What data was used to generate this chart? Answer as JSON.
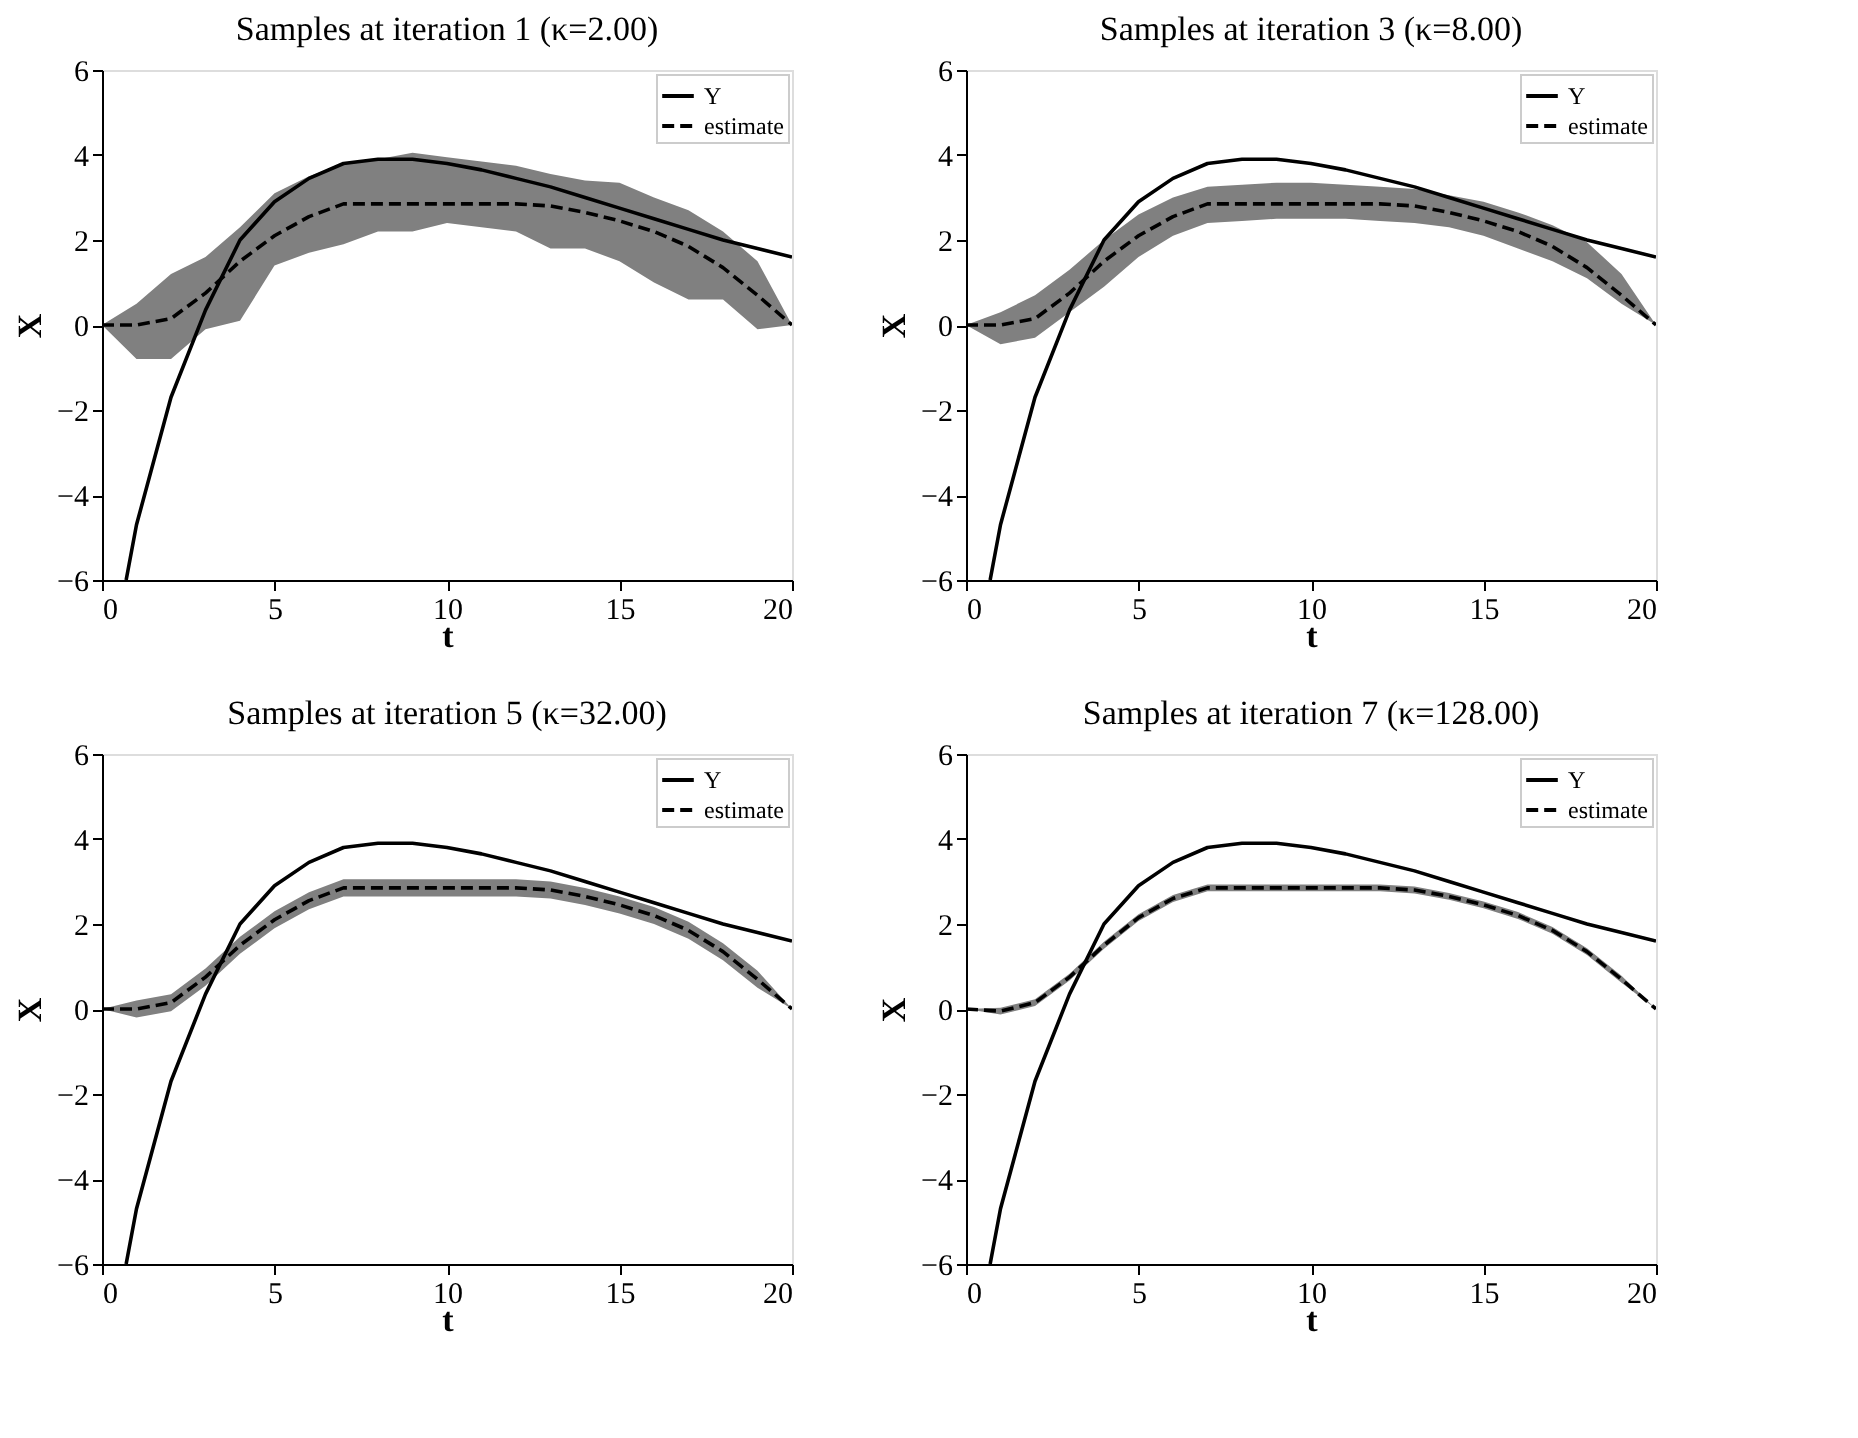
{
  "chart_data": [
    {
      "type": "line",
      "title": "Samples at iteration 1 (κ=2.00)",
      "xlabel": "t",
      "ylabel": "X",
      "xlim": [
        0,
        20
      ],
      "ylim": [
        -6,
        6
      ],
      "xticks": [
        0,
        5,
        10,
        15,
        20
      ],
      "yticks": [
        -6,
        -4,
        -2,
        0,
        2,
        4,
        6
      ],
      "grid": false,
      "legend": "top right",
      "series": [
        {
          "name": "Y",
          "color": "#000000",
          "line_style": "solid",
          "x": [
            0.7,
            1,
            2,
            3,
            4,
            5,
            6,
            7,
            8,
            9,
            10,
            11,
            12,
            13,
            14,
            15,
            16,
            17,
            18,
            19,
            20
          ],
          "values": [
            -6,
            -4.7,
            -1.7,
            0.35,
            2.0,
            2.9,
            3.45,
            3.8,
            3.9,
            3.9,
            3.8,
            3.65,
            3.45,
            3.25,
            3.0,
            2.75,
            2.5,
            2.25,
            2.0,
            1.8,
            1.6
          ]
        },
        {
          "name": "estimate",
          "color": "#000000",
          "line_style": "dashed",
          "x": [
            0,
            1,
            2,
            3,
            4,
            5,
            6,
            7,
            8,
            9,
            10,
            11,
            12,
            13,
            14,
            15,
            16,
            17,
            18,
            19,
            20
          ],
          "values": [
            0,
            0,
            0.15,
            0.75,
            1.5,
            2.1,
            2.55,
            2.85,
            2.85,
            2.85,
            2.85,
            2.85,
            2.85,
            2.8,
            2.65,
            2.45,
            2.2,
            1.85,
            1.35,
            0.7,
            0
          ],
          "lower": [
            0,
            -0.8,
            -0.8,
            -0.1,
            0.1,
            1.4,
            1.7,
            1.9,
            2.2,
            2.2,
            2.4,
            2.3,
            2.2,
            1.8,
            1.8,
            1.5,
            1.0,
            0.6,
            0.6,
            -0.1,
            0
          ],
          "upper": [
            0,
            0.5,
            1.2,
            1.6,
            2.3,
            3.1,
            3.5,
            3.8,
            3.9,
            4.05,
            3.95,
            3.85,
            3.75,
            3.55,
            3.4,
            3.35,
            3.0,
            2.7,
            2.2,
            1.5,
            0
          ]
        }
      ]
    },
    {
      "type": "line",
      "title": "Samples at iteration 3 (κ=8.00)",
      "xlabel": "t",
      "ylabel": "X",
      "xlim": [
        0,
        20
      ],
      "ylim": [
        -6,
        6
      ],
      "xticks": [
        0,
        5,
        10,
        15,
        20
      ],
      "yticks": [
        -6,
        -4,
        -2,
        0,
        2,
        4,
        6
      ],
      "grid": false,
      "legend": "top right",
      "series": [
        {
          "name": "Y",
          "color": "#000000",
          "line_style": "solid",
          "x": [
            0.7,
            1,
            2,
            3,
            4,
            5,
            6,
            7,
            8,
            9,
            10,
            11,
            12,
            13,
            14,
            15,
            16,
            17,
            18,
            19,
            20
          ],
          "values": [
            -6,
            -4.7,
            -1.7,
            0.35,
            2.0,
            2.9,
            3.45,
            3.8,
            3.9,
            3.9,
            3.8,
            3.65,
            3.45,
            3.25,
            3.0,
            2.75,
            2.5,
            2.25,
            2.0,
            1.8,
            1.6
          ]
        },
        {
          "name": "estimate",
          "color": "#000000",
          "line_style": "dashed",
          "x": [
            0,
            1,
            2,
            3,
            4,
            5,
            6,
            7,
            8,
            9,
            10,
            11,
            12,
            13,
            14,
            15,
            16,
            17,
            18,
            19,
            20
          ],
          "values": [
            0,
            0,
            0.15,
            0.75,
            1.5,
            2.1,
            2.55,
            2.85,
            2.85,
            2.85,
            2.85,
            2.85,
            2.85,
            2.8,
            2.65,
            2.45,
            2.2,
            1.85,
            1.35,
            0.7,
            0
          ],
          "lower": [
            0,
            -0.45,
            -0.3,
            0.3,
            0.9,
            1.6,
            2.1,
            2.4,
            2.45,
            2.5,
            2.5,
            2.5,
            2.45,
            2.4,
            2.3,
            2.1,
            1.8,
            1.5,
            1.1,
            0.5,
            0
          ],
          "upper": [
            0,
            0.3,
            0.7,
            1.3,
            2.0,
            2.6,
            3.0,
            3.25,
            3.3,
            3.35,
            3.35,
            3.3,
            3.25,
            3.2,
            3.05,
            2.9,
            2.65,
            2.35,
            1.95,
            1.2,
            0
          ]
        }
      ]
    },
    {
      "type": "line",
      "title": "Samples at iteration 5 (κ=32.00)",
      "xlabel": "t",
      "ylabel": "X",
      "xlim": [
        0,
        20
      ],
      "ylim": [
        -6,
        6
      ],
      "xticks": [
        0,
        5,
        10,
        15,
        20
      ],
      "yticks": [
        -6,
        -4,
        -2,
        0,
        2,
        4,
        6
      ],
      "grid": false,
      "legend": "top right",
      "series": [
        {
          "name": "Y",
          "color": "#000000",
          "line_style": "solid",
          "x": [
            0.7,
            1,
            2,
            3,
            4,
            5,
            6,
            7,
            8,
            9,
            10,
            11,
            12,
            13,
            14,
            15,
            16,
            17,
            18,
            19,
            20
          ],
          "values": [
            -6,
            -4.7,
            -1.7,
            0.35,
            2.0,
            2.9,
            3.45,
            3.8,
            3.9,
            3.9,
            3.8,
            3.65,
            3.45,
            3.25,
            3.0,
            2.75,
            2.5,
            2.25,
            2.0,
            1.8,
            1.6
          ]
        },
        {
          "name": "estimate",
          "color": "#000000",
          "line_style": "dashed",
          "x": [
            0,
            1,
            2,
            3,
            4,
            5,
            6,
            7,
            8,
            9,
            10,
            11,
            12,
            13,
            14,
            15,
            16,
            17,
            18,
            19,
            20
          ],
          "values": [
            0,
            0,
            0.15,
            0.75,
            1.5,
            2.1,
            2.55,
            2.85,
            2.85,
            2.85,
            2.85,
            2.85,
            2.85,
            2.8,
            2.65,
            2.45,
            2.2,
            1.85,
            1.35,
            0.7,
            0
          ],
          "lower": [
            0,
            -0.2,
            -0.05,
            0.55,
            1.3,
            1.9,
            2.35,
            2.65,
            2.65,
            2.65,
            2.65,
            2.65,
            2.65,
            2.6,
            2.45,
            2.25,
            2.0,
            1.65,
            1.15,
            0.5,
            0
          ],
          "upper": [
            0,
            0.2,
            0.35,
            0.95,
            1.7,
            2.3,
            2.75,
            3.05,
            3.05,
            3.05,
            3.05,
            3.05,
            3.05,
            3.0,
            2.85,
            2.65,
            2.4,
            2.05,
            1.55,
            0.9,
            0
          ]
        }
      ]
    },
    {
      "type": "line",
      "title": "Samples at iteration 7 (κ=128.00)",
      "xlabel": "t",
      "ylabel": "X",
      "xlim": [
        0,
        20
      ],
      "ylim": [
        -6,
        6
      ],
      "xticks": [
        0,
        5,
        10,
        15,
        20
      ],
      "yticks": [
        -6,
        -4,
        -2,
        0,
        2,
        4,
        6
      ],
      "grid": false,
      "legend": "top right",
      "series": [
        {
          "name": "Y",
          "color": "#000000",
          "line_style": "solid",
          "x": [
            0.7,
            1,
            2,
            3,
            4,
            5,
            6,
            7,
            8,
            9,
            10,
            11,
            12,
            13,
            14,
            15,
            16,
            17,
            18,
            19,
            20
          ],
          "values": [
            -6,
            -4.7,
            -1.7,
            0.35,
            2.0,
            2.9,
            3.45,
            3.8,
            3.9,
            3.9,
            3.8,
            3.65,
            3.45,
            3.25,
            3.0,
            2.75,
            2.5,
            2.25,
            2.0,
            1.8,
            1.6
          ]
        },
        {
          "name": "estimate",
          "color": "#000000",
          "line_style": "dashed",
          "x": [
            0,
            1,
            2,
            3,
            4,
            5,
            6,
            7,
            8,
            9,
            10,
            11,
            12,
            13,
            14,
            15,
            16,
            17,
            18,
            19,
            20
          ],
          "values": [
            0,
            -0.05,
            0.15,
            0.75,
            1.5,
            2.15,
            2.6,
            2.85,
            2.85,
            2.85,
            2.85,
            2.85,
            2.85,
            2.8,
            2.65,
            2.45,
            2.2,
            1.85,
            1.35,
            0.7,
            0
          ],
          "lower": [
            0,
            -0.13,
            0.07,
            0.67,
            1.42,
            2.07,
            2.52,
            2.77,
            2.77,
            2.77,
            2.77,
            2.77,
            2.77,
            2.72,
            2.57,
            2.37,
            2.12,
            1.77,
            1.27,
            0.62,
            0
          ],
          "upper": [
            0,
            0.03,
            0.23,
            0.83,
            1.58,
            2.23,
            2.68,
            2.93,
            2.93,
            2.93,
            2.93,
            2.93,
            2.93,
            2.88,
            2.73,
            2.53,
            2.28,
            1.93,
            1.43,
            0.78,
            0
          ]
        }
      ]
    }
  ]
}
